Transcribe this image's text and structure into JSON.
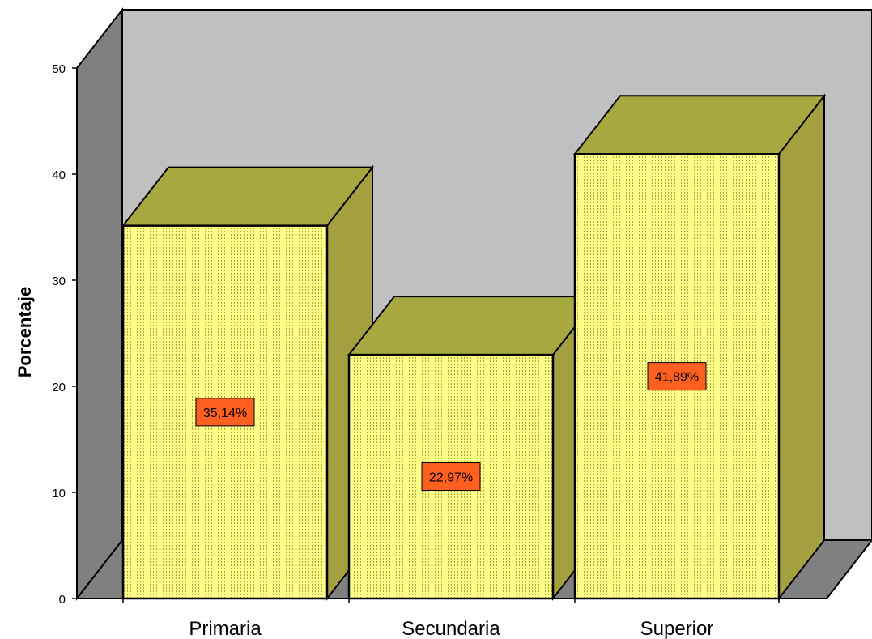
{
  "chart_data": {
    "type": "bar",
    "title": "",
    "xlabel": "",
    "ylabel": "Porcentaje",
    "categories": [
      "Primaria",
      "Secundaria",
      "Superior"
    ],
    "values": [
      35.14,
      22.97,
      41.89
    ],
    "data_labels": [
      "35,14%",
      "22,97%",
      "41,89%"
    ],
    "ylim": [
      0,
      50
    ],
    "yticks": [
      "0",
      "10",
      "20",
      "30",
      "40",
      "50"
    ],
    "grid": false,
    "legend": "none",
    "style": "3d",
    "colors": {
      "bar_front": "#ffff88",
      "bar_dots": "#a8a840",
      "bar_top": "#a8a840",
      "bar_side": "#a4a040",
      "back_wall": "#c0c0c0",
      "side_wall": "#808080",
      "floor": "#808080",
      "label_bg": "#ff6020"
    }
  }
}
